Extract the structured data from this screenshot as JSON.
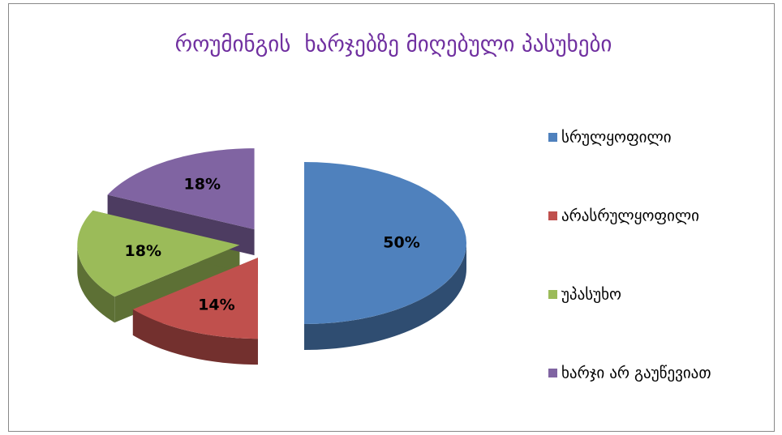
{
  "chart_data": {
    "type": "pie",
    "title": "როუმინგის  ხარჯებზე მიღებული პასუხები",
    "categories": [
      "სრულყოფილი",
      "არასრულყოფილი",
      "უპასუხო",
      "ხარჯი არ გაუწევიათ"
    ],
    "values": [
      50,
      14,
      18,
      18
    ],
    "value_labels": [
      "50%",
      "14%",
      "18%",
      "18%"
    ],
    "colors": [
      "#4f81bd",
      "#c0504d",
      "#9bbb59",
      "#8064a2"
    ],
    "legend": "right"
  }
}
